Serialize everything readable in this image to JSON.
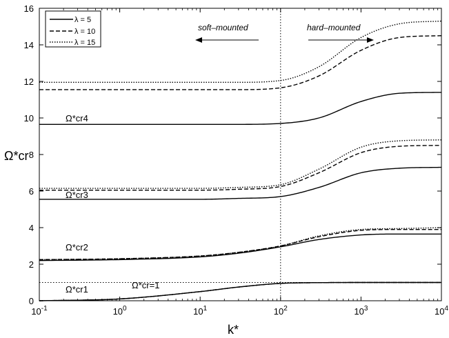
{
  "chart_data": {
    "type": "line",
    "xscale": "log",
    "xlim": [
      0.1,
      10000
    ],
    "ylim": [
      0,
      16
    ],
    "xlabel": "k*",
    "ylabel": "Ω*cr",
    "grid": false,
    "legend_position": "top-left",
    "x_ticks": [
      0.1,
      1,
      10,
      100,
      1000,
      10000
    ],
    "y_ticks": [
      0,
      2,
      4,
      6,
      8,
      10,
      12,
      14,
      16
    ],
    "x_tick_labels": [
      "10^-1",
      "10^0",
      "10^1",
      "10^2",
      "10^3",
      "10^4"
    ],
    "y_tick_labels": [
      "0",
      "2",
      "4",
      "6",
      "8",
      "10",
      "12",
      "14",
      "16"
    ],
    "legend": [
      {
        "label": "λ = 5",
        "style": "solid"
      },
      {
        "label": "λ = 10",
        "style": "dashed"
      },
      {
        "label": "λ = 15",
        "style": "dotted"
      }
    ],
    "annotations": {
      "soft_label": "soft–mounted",
      "hard_label": "hard–mounted",
      "reference_line_label": "Ω*cr=1",
      "vertical_line_x": 100,
      "reference_line_y": 1
    },
    "curve_labels": [
      {
        "text": "Ω*cr4"
      },
      {
        "text": "Ω*cr3"
      },
      {
        "text": "Ω*cr2"
      },
      {
        "text": "Ω*cr1"
      }
    ],
    "series": [
      {
        "name": "λ = 5",
        "mode": 1,
        "style": "solid",
        "x": [
          0.1,
          1,
          10,
          30,
          100,
          300,
          1000,
          3000,
          10000
        ],
        "y": [
          0.0,
          0.1,
          0.5,
          0.75,
          0.95,
          0.99,
          1.0,
          1.0,
          1.0
        ]
      },
      {
        "name": "λ = 10",
        "mode": 1,
        "style": "dashed",
        "x": [
          0.1,
          1,
          10,
          30,
          100,
          300,
          1000,
          3000,
          10000
        ],
        "y": [
          0.0,
          0.1,
          0.5,
          0.75,
          0.95,
          0.99,
          1.0,
          1.0,
          1.0
        ]
      },
      {
        "name": "λ = 15",
        "mode": 1,
        "style": "dotted",
        "x": [
          0.1,
          1,
          10,
          30,
          100,
          300,
          1000,
          3000,
          10000
        ],
        "y": [
          0.0,
          0.1,
          0.5,
          0.75,
          0.95,
          0.99,
          1.0,
          1.0,
          1.0
        ]
      },
      {
        "name": "λ = 5",
        "mode": 2,
        "style": "solid",
        "x": [
          0.1,
          1,
          10,
          30,
          100,
          300,
          1000,
          3000,
          10000
        ],
        "y": [
          2.2,
          2.25,
          2.4,
          2.6,
          2.95,
          3.35,
          3.6,
          3.65,
          3.65
        ]
      },
      {
        "name": "λ = 10",
        "mode": 2,
        "style": "dashed",
        "x": [
          0.1,
          1,
          10,
          30,
          100,
          300,
          1000,
          3000,
          10000
        ],
        "y": [
          2.25,
          2.3,
          2.45,
          2.65,
          3.0,
          3.5,
          3.85,
          3.9,
          3.9
        ]
      },
      {
        "name": "λ = 15",
        "mode": 2,
        "style": "dotted",
        "x": [
          0.1,
          1,
          10,
          30,
          100,
          300,
          1000,
          3000,
          10000
        ],
        "y": [
          2.25,
          2.3,
          2.45,
          2.65,
          3.0,
          3.55,
          3.9,
          3.95,
          4.0
        ]
      },
      {
        "name": "λ = 5",
        "mode": 3,
        "style": "solid",
        "x": [
          0.1,
          1,
          10,
          30,
          100,
          300,
          1000,
          3000,
          10000
        ],
        "y": [
          5.55,
          5.55,
          5.55,
          5.6,
          5.7,
          6.2,
          7.0,
          7.25,
          7.3
        ]
      },
      {
        "name": "λ = 10",
        "mode": 3,
        "style": "dashed",
        "x": [
          0.1,
          1,
          10,
          30,
          100,
          300,
          1000,
          3000,
          10000
        ],
        "y": [
          6.05,
          6.05,
          6.05,
          6.1,
          6.25,
          7.0,
          8.1,
          8.45,
          8.5
        ]
      },
      {
        "name": "λ = 15",
        "mode": 3,
        "style": "dotted",
        "x": [
          0.1,
          1,
          10,
          30,
          100,
          300,
          1000,
          3000,
          10000
        ],
        "y": [
          6.15,
          6.15,
          6.15,
          6.2,
          6.35,
          7.2,
          8.4,
          8.75,
          8.8
        ]
      },
      {
        "name": "λ = 5",
        "mode": 4,
        "style": "solid",
        "x": [
          0.1,
          1,
          10,
          30,
          100,
          300,
          1000,
          3000,
          10000
        ],
        "y": [
          9.65,
          9.65,
          9.65,
          9.65,
          9.7,
          10.0,
          10.9,
          11.35,
          11.4
        ]
      },
      {
        "name": "λ = 10",
        "mode": 4,
        "style": "dashed",
        "x": [
          0.1,
          1,
          10,
          30,
          100,
          300,
          1000,
          3000,
          10000
        ],
        "y": [
          11.55,
          11.55,
          11.55,
          11.55,
          11.65,
          12.3,
          13.7,
          14.4,
          14.5
        ]
      },
      {
        "name": "λ = 15",
        "mode": 4,
        "style": "dotted",
        "x": [
          0.1,
          1,
          10,
          30,
          100,
          300,
          1000,
          3000,
          10000
        ],
        "y": [
          11.95,
          11.95,
          11.95,
          11.95,
          12.05,
          12.8,
          14.4,
          15.15,
          15.3
        ]
      }
    ]
  }
}
